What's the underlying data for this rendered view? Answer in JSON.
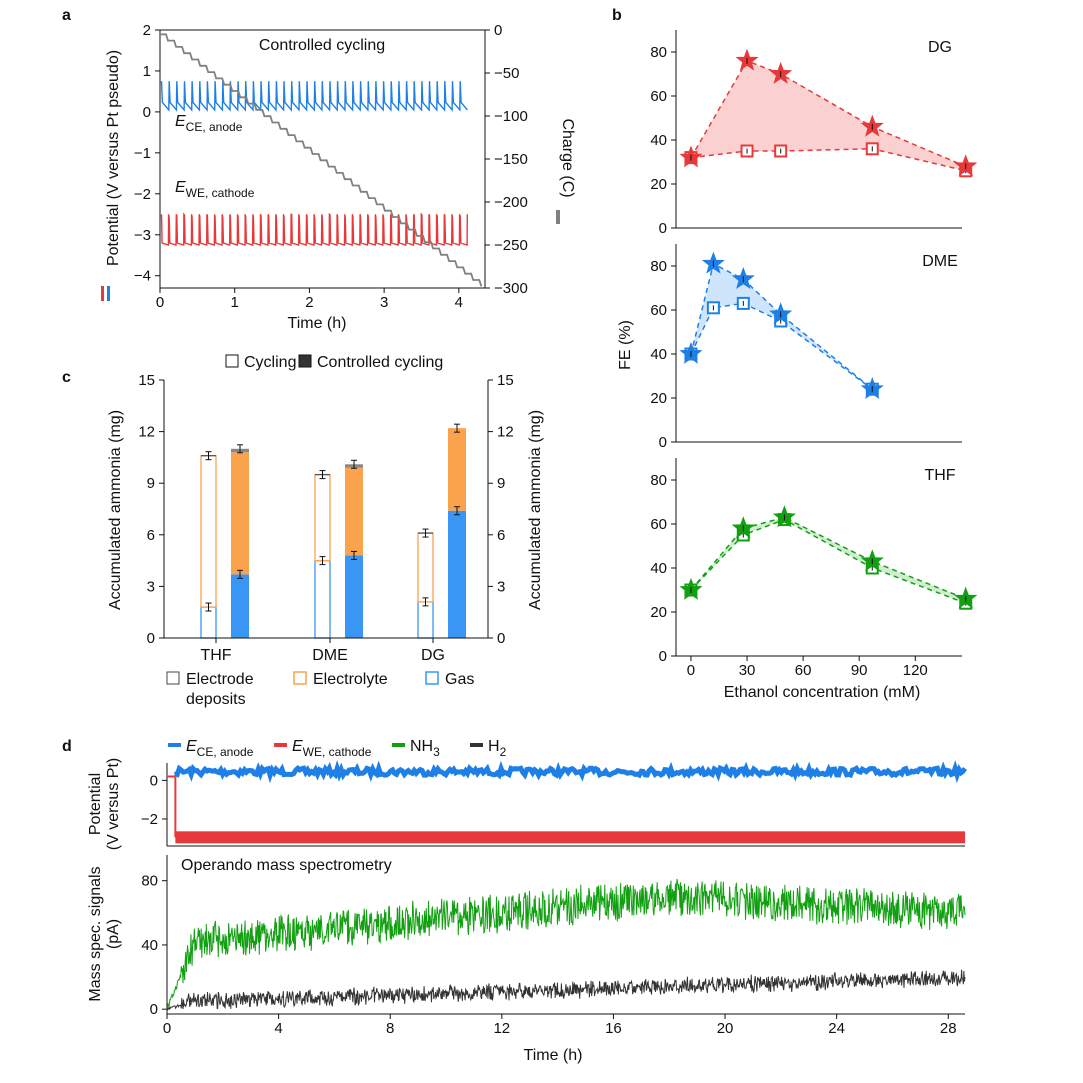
{
  "panel_labels": {
    "a": "a",
    "b": "b",
    "c": "c",
    "d": "d"
  },
  "colors": {
    "blue": "#1E7FE6",
    "red": "#E8393A",
    "green": "#12A012",
    "dark": "#333333",
    "grey": "#808080",
    "orange": "#FBA24D",
    "gas_blue": "#3A96F5"
  },
  "chart_data": [
    {
      "id": "a",
      "type": "line",
      "title": "Controlled cycling",
      "xlabel": "Time (h)",
      "ylabel": "Potential (V versus Pt pseudo)",
      "y2label": "Charge (C)",
      "xlim": [
        0,
        4.35
      ],
      "ylim": [
        -4.3,
        2
      ],
      "y2lim": [
        -300,
        0
      ],
      "xticks": [
        "0",
        "1",
        "2",
        "3",
        "4"
      ],
      "yticks": [
        "2",
        "1",
        "0",
        "−1",
        "−2",
        "−3",
        "−4"
      ],
      "y2ticks": [
        "0",
        "−50",
        "−100",
        "−150",
        "−200",
        "−250",
        "−300"
      ],
      "annotations": [
        {
          "main": "E",
          "sub": "CE, anode"
        },
        {
          "main": "E",
          "sub": "WE, cathode"
        }
      ],
      "series": [
        {
          "name": "E_CE,anode",
          "color": "#1E7FE6",
          "baseline_V": 0.05,
          "peak_V": 0.75,
          "cycles": 40
        },
        {
          "name": "E_WE,cathode",
          "color": "#E8393A",
          "baseline_V": -3.3,
          "peak_V": -2.5,
          "cycles": 40
        },
        {
          "name": "Charge",
          "color": "#808080",
          "start_C": -5,
          "end_C": -298,
          "steps": 40
        }
      ]
    },
    {
      "id": "b",
      "type": "line",
      "xlabel": "Ethanol concentration (mM)",
      "ylabel": "FE (%)",
      "xticks": [
        "0",
        "30",
        "60",
        "90",
        "120"
      ],
      "xlim": [
        -8,
        145
      ],
      "ylim": [
        0,
        90
      ],
      "yticks": [
        "0",
        "20",
        "40",
        "60",
        "80"
      ],
      "subplots": [
        {
          "name": "DG",
          "color": "#E8393A",
          "fill": "#FAC8C8",
          "star": {
            "x": [
              0,
              30,
              48,
              97,
              147
            ],
            "y": [
              32,
              76,
              70,
              46,
              28
            ]
          },
          "square": {
            "x": [
              0,
              30,
              48,
              97,
              147
            ],
            "y": [
              32,
              35,
              35,
              36,
              26
            ]
          }
        },
        {
          "name": "DME",
          "color": "#1E7FE6",
          "fill": "#C7E0FA",
          "star": {
            "x": [
              0,
              12,
              28,
              48,
              97
            ],
            "y": [
              40,
              81,
              74,
              58,
              24
            ]
          },
          "square": {
            "x": [
              0,
              12,
              28,
              48,
              97
            ],
            "y": [
              40,
              61,
              63,
              55,
              24
            ]
          }
        },
        {
          "name": "THF",
          "color": "#12A012",
          "fill": "#C8EAC8",
          "star": {
            "x": [
              0,
              28,
              50,
              97,
              147
            ],
            "y": [
              30,
              58,
              63,
              43,
              26
            ]
          },
          "square": {
            "x": [
              0,
              28,
              50,
              97,
              147
            ],
            "y": [
              30,
              55,
              62,
              40,
              24
            ]
          }
        }
      ]
    },
    {
      "id": "c",
      "type": "bar",
      "ylabel": "Accumulated ammonia (mg)",
      "y2label": "Accumulated ammonia (mg)",
      "categories": [
        "THF",
        "DME",
        "DG"
      ],
      "ylim": [
        0,
        15
      ],
      "yticks": [
        "0",
        "3",
        "6",
        "9",
        "12",
        "15"
      ],
      "legend_top": [
        "Cycling",
        "Controlled cycling"
      ],
      "legend_bottom": [
        "Electrode deposits",
        "Electrolyte",
        "Gas"
      ],
      "cycling": {
        "gas": [
          1.8,
          4.5,
          2.1
        ],
        "electrolyte": [
          8.8,
          5.0,
          4.0
        ],
        "deposits": [
          0.0,
          0.0,
          0.0
        ],
        "total": [
          10.6,
          9.5,
          6.1
        ]
      },
      "controlled": {
        "gas": [
          3.7,
          4.8,
          7.4
        ],
        "electrolyte": [
          7.1,
          5.1,
          4.8
        ],
        "deposits": [
          0.2,
          0.2,
          0.0
        ],
        "total": [
          11.0,
          10.1,
          12.2
        ]
      }
    },
    {
      "id": "d",
      "type": "line",
      "title": "Operando mass spectrometry",
      "xlabel": "Time (h)",
      "xlim": [
        0,
        28.6
      ],
      "xticks": [
        "0",
        "4",
        "8",
        "12",
        "16",
        "20",
        "24",
        "28"
      ],
      "top": {
        "ylabel": "Potential (V versus Pt)",
        "ylim": [
          -3.4,
          0.9
        ],
        "yticks": [
          "0",
          "−2"
        ],
        "series": [
          {
            "name": "E_CE,anode",
            "color": "#1E7FE6",
            "level_V": 0.45
          },
          {
            "name": "E_WE,cathode",
            "color": "#E8393A",
            "level_V": -2.95
          }
        ]
      },
      "bottom": {
        "ylabel": "Mass spec. signals (pA)",
        "ylim": [
          -3,
          96
        ],
        "yticks": [
          "0",
          "40",
          "80"
        ],
        "series": [
          {
            "name": "NH3",
            "color": "#12A012",
            "start": 42,
            "mid": 70,
            "end": 60
          },
          {
            "name": "H2",
            "color": "#333333",
            "start": 5,
            "mid": 14,
            "end": 20
          }
        ]
      },
      "legend": [
        {
          "main": "E",
          "sub": "CE, anode",
          "color": "#1E7FE6"
        },
        {
          "main": "E",
          "sub": "WE, cathode",
          "color": "#E8393A"
        },
        {
          "main": "NH",
          "sub": "3",
          "color": "#12A012"
        },
        {
          "main": "H",
          "sub": "2",
          "color": "#333333"
        }
      ]
    }
  ]
}
